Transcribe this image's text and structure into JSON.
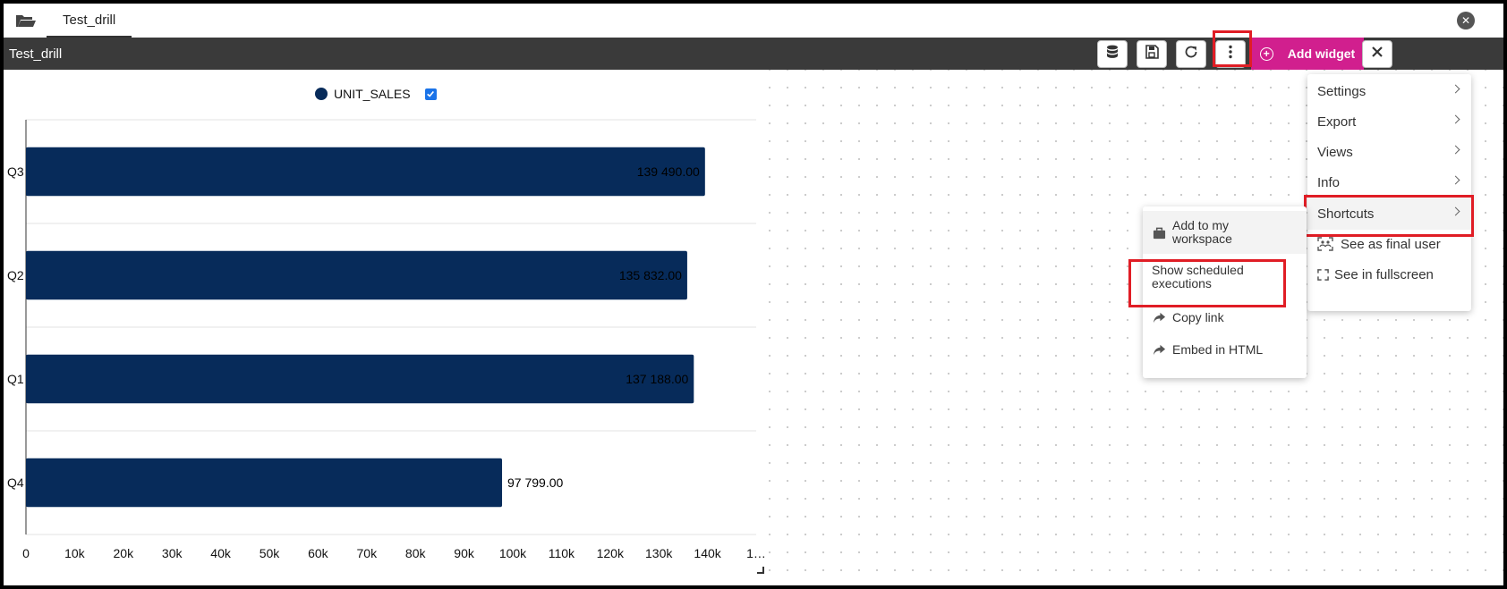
{
  "tab": {
    "label": "Test_drill"
  },
  "toolbar": {
    "title": "Test_drill",
    "add_widget_label": "Add widget",
    "icons": [
      "database-icon",
      "save-icon",
      "refresh-icon",
      "more-vertical-icon",
      "close-icon"
    ],
    "accent_color": "#d11f8e",
    "background_color": "#3a3a3a"
  },
  "main_menu": {
    "items": [
      {
        "label": "Settings",
        "submenu": true
      },
      {
        "label": "Export",
        "submenu": true
      },
      {
        "label": "Views",
        "submenu": true
      },
      {
        "label": "Info",
        "submenu": true
      },
      {
        "label": "Shortcuts",
        "submenu": true
      },
      {
        "label": "See as final user",
        "icon": "final-user-icon"
      },
      {
        "label": "See in fullscreen",
        "icon": "fullscreen-icon"
      }
    ]
  },
  "shortcuts_menu": {
    "items": [
      {
        "label": "Add to my workspace",
        "icon": "briefcase-icon"
      },
      {
        "label": "Show scheduled executions"
      },
      {
        "label": "Copy link",
        "icon": "share-arrow-icon"
      },
      {
        "label": "Embed in HTML",
        "icon": "share-arrow-icon"
      }
    ]
  },
  "highlight_color": "#e01d25",
  "chart_data": {
    "type": "bar",
    "orientation": "horizontal",
    "categories": [
      "Q3",
      "Q2",
      "Q1",
      "Q4"
    ],
    "series": [
      {
        "name": "UNIT_SALES",
        "values": [
          139490,
          135832,
          137188,
          97799
        ],
        "color": "#072b5a"
      }
    ],
    "data_labels": [
      "139 490.00",
      "135 832.00",
      "137 188.00",
      "97 799.00"
    ],
    "x_ticks": [
      "0",
      "10k",
      "20k",
      "30k",
      "40k",
      "50k",
      "60k",
      "70k",
      "80k",
      "90k",
      "100k",
      "110k",
      "120k",
      "130k",
      "140k",
      "1…"
    ],
    "xlim": [
      0,
      150000
    ],
    "legend_position": "top-center",
    "grid": true
  }
}
